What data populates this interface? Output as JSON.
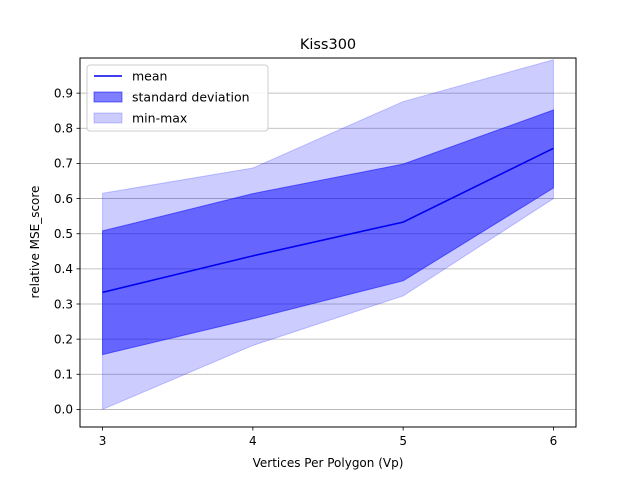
{
  "chart_data": {
    "type": "line",
    "title": "Kiss300",
    "xlabel": "Vertices Per Polygon (Vp)",
    "ylabel": "relative MSE_score",
    "x": [
      3,
      4,
      5,
      6
    ],
    "xlim": [
      2.85,
      6.15
    ],
    "ylim": [
      -0.05,
      1.0
    ],
    "xticks": [
      3,
      4,
      5,
      6
    ],
    "yticks": [
      0.0,
      0.1,
      0.2,
      0.3,
      0.4,
      0.5,
      0.6,
      0.7,
      0.8,
      0.9
    ],
    "grid": "y",
    "legend_position": "top-left",
    "series": [
      {
        "name": "mean",
        "kind": "line",
        "color": "#0000ee",
        "values": [
          0.333,
          0.437,
          0.533,
          0.743
        ]
      },
      {
        "name": "standard deviation",
        "kind": "band",
        "color": "#0000ff",
        "opacity": 0.5,
        "lower": [
          0.156,
          0.258,
          0.366,
          0.63
        ],
        "upper": [
          0.508,
          0.614,
          0.698,
          0.852
        ]
      },
      {
        "name": "min-max",
        "kind": "band",
        "color": "#0000ff",
        "opacity": 0.2,
        "lower": [
          0.0,
          0.182,
          0.323,
          0.6
        ],
        "upper": [
          0.615,
          0.687,
          0.876,
          0.995
        ]
      }
    ]
  }
}
